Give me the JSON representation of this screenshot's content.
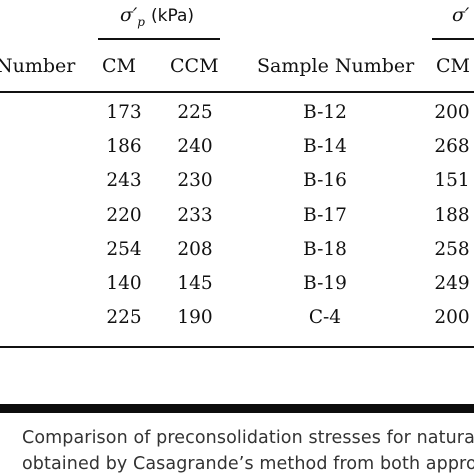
{
  "table": {
    "group_headers": [
      {
        "symbol": "σ′",
        "subscript": "p",
        "unit": "(kPa)"
      },
      {
        "symbol": "σ′",
        "subscript": "",
        "unit": ""
      }
    ],
    "columns": [
      "Number",
      "CM",
      "CCM",
      "Sample Number",
      "CM"
    ],
    "rows": [
      {
        "cm": "173",
        "ccm": "225",
        "sample": "B-12",
        "cm2": "200"
      },
      {
        "cm": "186",
        "ccm": "240",
        "sample": "B-14",
        "cm2": "268"
      },
      {
        "cm": "243",
        "ccm": "230",
        "sample": "B-16",
        "cm2": "151"
      },
      {
        "cm": "220",
        "ccm": "233",
        "sample": "B-17",
        "cm2": "188"
      },
      {
        "cm": "254",
        "ccm": "208",
        "sample": "B-18",
        "cm2": "258"
      },
      {
        "cm": "140",
        "ccm": "145",
        "sample": "B-19",
        "cm2": "249"
      },
      {
        "cm": "225",
        "ccm": "190",
        "sample": "C-4",
        "cm2": "200"
      }
    ]
  },
  "caption": {
    "line1": "Comparison of preconsolidation stresses for natural",
    "line2": "obtained by Casagrande’s method from both appro"
  }
}
